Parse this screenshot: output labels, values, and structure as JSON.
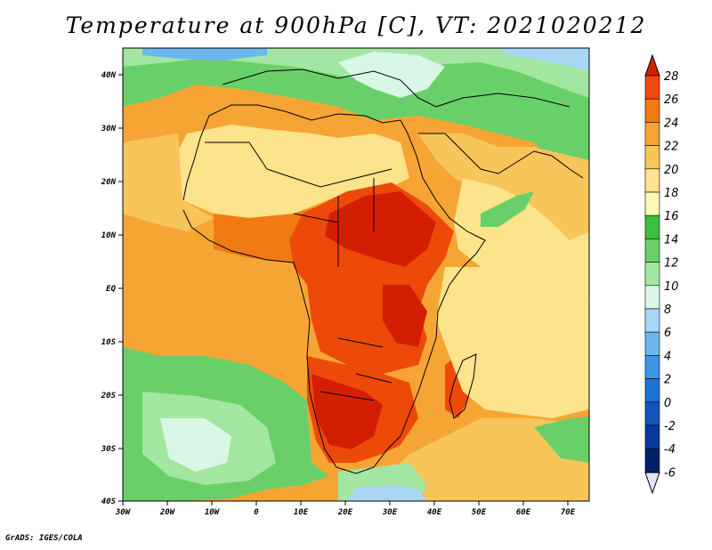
{
  "title": "Temperature at 900hPa [C], VT: 2021020212",
  "credit": "GrADS: IGES/COLA",
  "lon_labels": [
    "30W",
    "20W",
    "10W",
    "0",
    "10E",
    "20E",
    "30E",
    "40E",
    "50E",
    "60E",
    "70E"
  ],
  "lat_labels": [
    "40N",
    "30N",
    "20N",
    "10N",
    "EQ",
    "10S",
    "20S",
    "30S",
    "40S"
  ],
  "colorbar": {
    "labels": [
      "28",
      "26",
      "24",
      "22",
      "20",
      "18",
      "16",
      "14",
      "12",
      "10",
      "8",
      "6",
      "4",
      "2",
      "0",
      "-2",
      "-4",
      "-6"
    ],
    "colors": [
      "#d41e04",
      "#ed4a0a",
      "#f27a12",
      "#f6a534",
      "#f8c55a",
      "#fde38c",
      "#fdf6b8",
      "#3cbf3c",
      "#69d069",
      "#a2e6a2",
      "#d9f7e6",
      "#a9d6f5",
      "#6db7ef",
      "#3b97e3",
      "#1c74d2",
      "#1155bc",
      "#0a38a0",
      "#05206b",
      "#e1e4fb"
    ]
  },
  "map": {
    "domain": {
      "lon": [
        -30,
        75
      ],
      "lat": [
        -40,
        45
      ]
    },
    "field": "temperature at 900 hPa",
    "units": "C",
    "valid_time": "2021020212",
    "colors": {
      "ocean_tropics": "#f6a534",
      "sahara": "#fde38c",
      "med": "#d9f7e6",
      "hot_core": "#d41e04"
    }
  }
}
